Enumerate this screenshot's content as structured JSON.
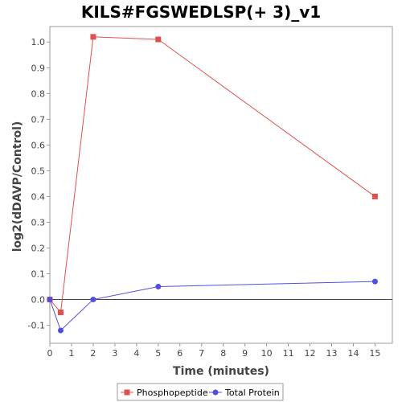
{
  "chart_data": {
    "type": "line",
    "title": "KILS#FGSWEDLSP(+ 3)_v1",
    "xlabel": "Time (minutes)",
    "ylabel": "log2(dDAVP/Control)",
    "xlim": [
      0,
      15.8
    ],
    "ylim": [
      -0.17,
      1.06
    ],
    "x_ticks": [
      0,
      1,
      2,
      3,
      4,
      5,
      6,
      7,
      8,
      9,
      10,
      11,
      12,
      13,
      14,
      15
    ],
    "y_ticks": [
      -0.1,
      0.0,
      0.1,
      0.2,
      0.3,
      0.4,
      0.5,
      0.6,
      0.7,
      0.8,
      0.9,
      1.0
    ],
    "grid": false,
    "legend_position": "bottom",
    "series": [
      {
        "name": "Phosphopeptide",
        "marker": "square",
        "color": "#e05050",
        "points": [
          [
            0,
            0.0
          ],
          [
            0.5,
            -0.05
          ],
          [
            2,
            1.02
          ],
          [
            5,
            1.01
          ],
          [
            15,
            0.4
          ]
        ]
      },
      {
        "name": "Total Protein",
        "marker": "circle",
        "color": "#5050e0",
        "points": [
          [
            0,
            0.0
          ],
          [
            0.5,
            -0.12
          ],
          [
            2,
            0.0
          ],
          [
            5,
            0.05
          ],
          [
            15,
            0.07
          ]
        ]
      }
    ]
  }
}
